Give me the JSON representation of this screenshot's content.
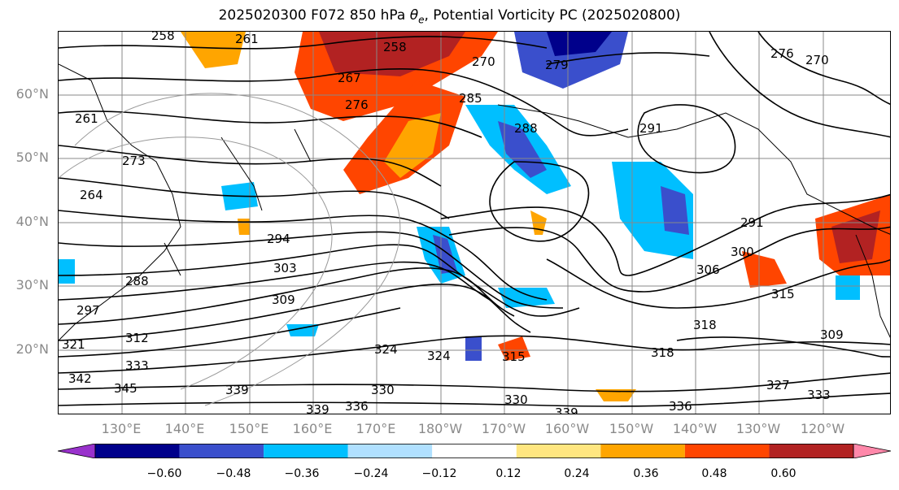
{
  "title": "2025020300 F072 850 hPa θe, Potential Vorticity PC (2025020800)",
  "lat_labels": [
    "60°N",
    "50°N",
    "40°N",
    "30°N",
    "20°N"
  ],
  "lon_labels": [
    "130°E",
    "140°E",
    "150°E",
    "160°E",
    "170°E",
    "180°W",
    "170°W",
    "160°W",
    "150°W",
    "140°W",
    "130°W",
    "120°W"
  ],
  "colorbar": {
    "colors": [
      "#9932cc",
      "#00008b",
      "#3a4fcc",
      "#00bfff",
      "#b0e0ff",
      "#ffffff",
      "#ffe680",
      "#ffa500",
      "#ff4500",
      "#b22222",
      "#ff88aa"
    ],
    "ticks": [
      "−0.60",
      "−0.48",
      "−0.36",
      "−0.24",
      "−0.12",
      "0.12",
      "0.24",
      "0.36",
      "0.48",
      "0.60"
    ]
  },
  "contour_labels": [
    "258",
    "261",
    "258",
    "270",
    "279",
    "276",
    "270",
    "267",
    "276",
    "285",
    "288",
    "291",
    "261",
    "273",
    "264",
    "294",
    "303",
    "288",
    "297",
    "309",
    "312",
    "321",
    "333",
    "342",
    "345",
    "339",
    "324",
    "324",
    "315",
    "318",
    "318",
    "306",
    "300",
    "291",
    "315",
    "309",
    "327",
    "333",
    "330",
    "339",
    "336",
    "339",
    "336",
    "330"
  ]
}
